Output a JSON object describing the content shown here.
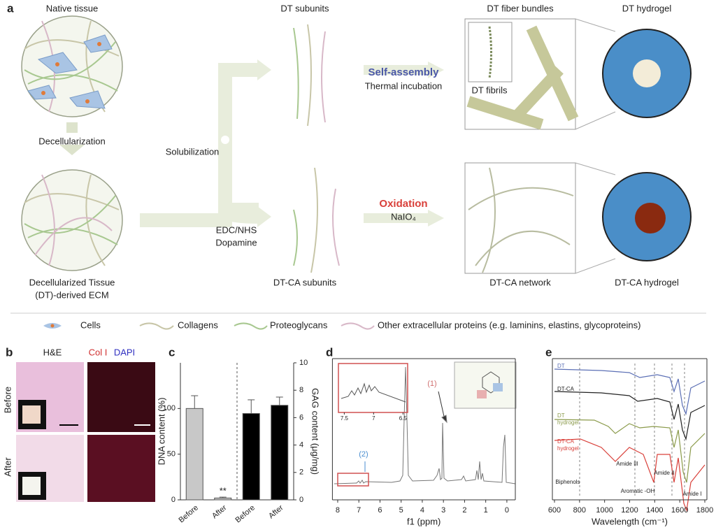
{
  "figure": {
    "panel_a": {
      "label": "a",
      "native_tissue": "Native tissue",
      "decellularization": "Decellularization",
      "decellularized_tissue": [
        "Decellularized Tissue",
        "(DT)-derived ECM"
      ],
      "solubilization": "Solubilization",
      "dt_subunits": "DT subunits",
      "dtca_subunits": "DT-CA subunits",
      "reagents": [
        "EDC/NHS",
        "Dopamine"
      ],
      "self_assembly": "Self-assembly",
      "thermal_incubation": "Thermal incubation",
      "oxidation": "Oxidation",
      "oxidant": "NaIO₄",
      "fiber_bundles": "DT fiber bundles",
      "fibrils": "DT fibrils",
      "dt_hydrogel": "DT hydrogel",
      "dtca_network": "DT-CA network",
      "dtca_hydrogel": "DT-CA hydrogel",
      "legend": [
        "Cells",
        "Collagens",
        "Proteoglycans",
        "Other extracellular proteins (e.g. laminins, elastins, glycoproteins)"
      ]
    },
    "panel_b": {
      "label": "b",
      "stains": [
        "H&E",
        "Col I",
        "DAPI"
      ],
      "rows": [
        "Before",
        "After"
      ]
    }
  },
  "chart_data": [
    {
      "panel": "c",
      "type": "bar",
      "categories": [
        "Before",
        "After",
        "Before",
        "After"
      ],
      "ylabel": "DNA content (%)",
      "y2label": "GAG content (μg/mg)",
      "ylim": [
        0,
        150
      ],
      "yticks": [
        0,
        50,
        100
      ],
      "y2lim": [
        0,
        10
      ],
      "y2ticks": [
        0,
        2,
        4,
        6,
        8,
        10
      ],
      "series": [
        {
          "color": "#c8c8c8",
          "values": [
            100,
            2,
            null,
            null
          ],
          "errors": [
            14,
            1,
            null,
            null
          ]
        },
        {
          "color": "#000000",
          "axis": "y2",
          "values": [
            null,
            null,
            6.3,
            6.9
          ],
          "errors": [
            null,
            null,
            1.0,
            0.6
          ]
        }
      ],
      "annotations": [
        {
          "text": "**",
          "category": 1
        }
      ]
    },
    {
      "panel": "d",
      "type": "line",
      "xlabel": "f1 (ppm)",
      "xlim": [
        8.25,
        -0.4
      ],
      "xticks": [
        8,
        7,
        6,
        5,
        4,
        3,
        2,
        1,
        0
      ],
      "inset_xlim": [
        7.6,
        6.42
      ],
      "inset_xticks": [
        7.5,
        7,
        6.5
      ],
      "annotations": [
        "(1)",
        "(2)"
      ]
    },
    {
      "panel": "e",
      "type": "line",
      "xlabel": "Wavelength (cm⁻¹)",
      "xlim": [
        600,
        1800
      ],
      "xticks": [
        600,
        800,
        1000,
        1200,
        1400,
        1600,
        1800
      ],
      "traces": [
        {
          "label": [
            "DT"
          ],
          "color": "#5b6fb5"
        },
        {
          "label": [
            "DT-CA"
          ],
          "color": "#222222"
        },
        {
          "label": [
            "DT",
            "hydrogel"
          ],
          "color": "#8a9a4a"
        },
        {
          "label": [
            "DT-CA",
            "hydrogel"
          ],
          "color": "#d9403a"
        }
      ],
      "annotations": [
        "Biphenols",
        "Amide III",
        "Aromatic -OH",
        "Amide II",
        "Amide I"
      ]
    }
  ]
}
